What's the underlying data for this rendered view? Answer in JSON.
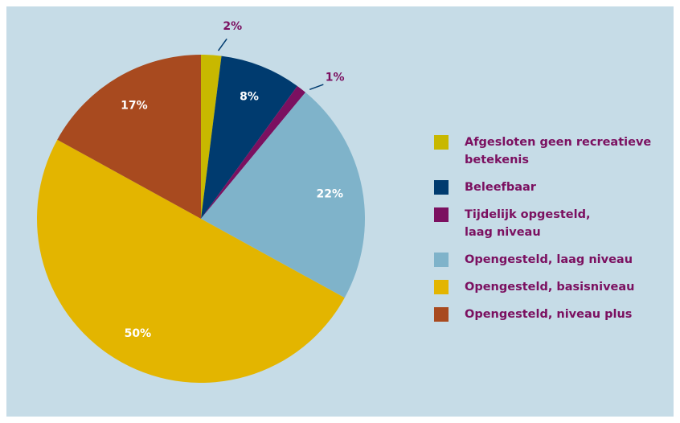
{
  "chart_data": {
    "type": "pie",
    "categories": [
      "Afgesloten geen recreatieve betekenis",
      "Beleefbaar",
      "Tijdelijk opgesteld, laag niveau",
      "Opengesteld, laag niveau",
      "Opengesteld, basisniveau",
      "Opengesteld, niveau plus"
    ],
    "values": [
      2,
      8,
      1,
      22,
      50,
      17
    ],
    "value_labels": [
      "2%",
      "8%",
      "1%",
      "22%",
      "50%",
      "17%"
    ],
    "colors": [
      "#c8b800",
      "#003b6f",
      "#7b1060",
      "#7fb3ca",
      "#e3b500",
      "#a84a1f"
    ],
    "legend": "right"
  }
}
